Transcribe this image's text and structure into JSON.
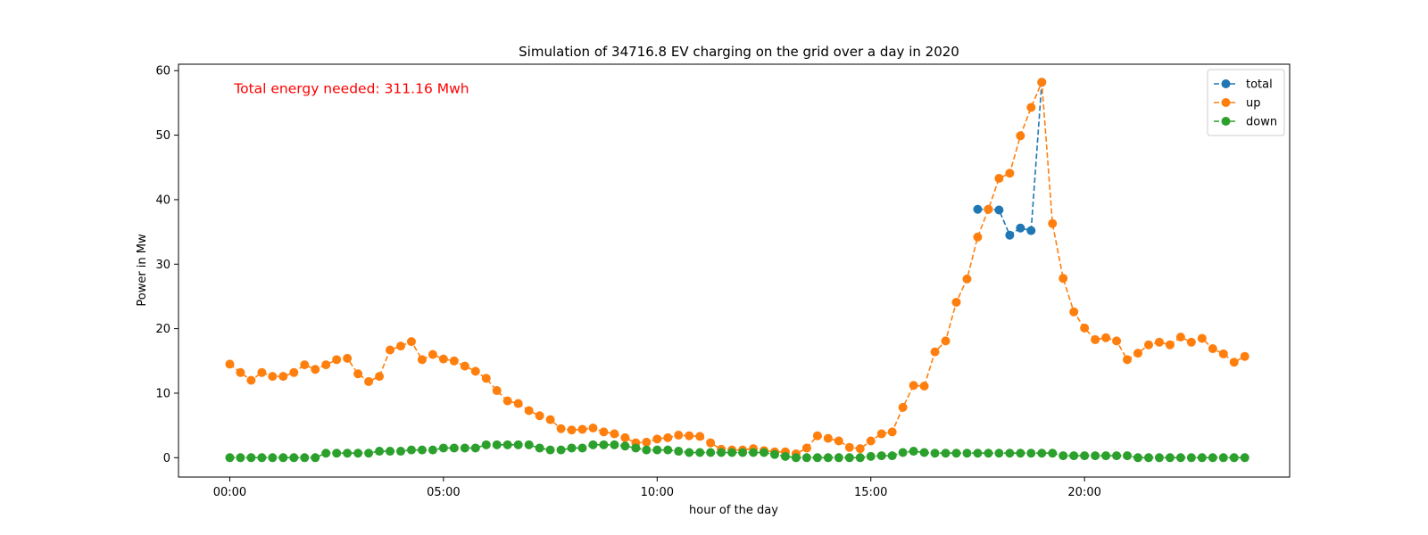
{
  "chart_data": {
    "type": "line",
    "title": "Simulation of 34716.8 EV charging on the grid over a day in 2020",
    "xlabel": "hour of the day",
    "ylabel": "Power in Mw",
    "xlim": [
      -1.2,
      24.8
    ],
    "ylim": [
      -3,
      61
    ],
    "xticks": [
      {
        "value": 0,
        "label": "00:00"
      },
      {
        "value": 5,
        "label": "05:00"
      },
      {
        "value": 10,
        "label": "10:00"
      },
      {
        "value": 15,
        "label": "15:00"
      },
      {
        "value": 20,
        "label": "20:00"
      }
    ],
    "yticks": [
      0,
      10,
      20,
      30,
      40,
      50,
      60
    ],
    "grid": false,
    "legend_position": "top-right",
    "annotation": {
      "text": "Total energy needed: 311.16 Mwh",
      "color": "#ff0000",
      "x": 0.1,
      "y": 56.5
    },
    "series": [
      {
        "name": "total",
        "color": "#1f77b4",
        "x": [
          17.5,
          17.75,
          18.0,
          18.25,
          18.5,
          18.75,
          19.0
        ],
        "y": [
          38.5,
          38.5,
          38.4,
          34.5,
          35.6,
          35.2,
          58.2
        ]
      },
      {
        "name": "up",
        "color": "#ff7f0e",
        "x": [
          0,
          0.25,
          0.5,
          0.75,
          1,
          1.25,
          1.5,
          1.75,
          2,
          2.25,
          2.5,
          2.75,
          3,
          3.25,
          3.5,
          3.75,
          4,
          4.25,
          4.5,
          4.75,
          5,
          5.25,
          5.5,
          5.75,
          6,
          6.25,
          6.5,
          6.75,
          7,
          7.25,
          7.5,
          7.75,
          8,
          8.25,
          8.5,
          8.75,
          9,
          9.25,
          9.5,
          9.75,
          10,
          10.25,
          10.5,
          10.75,
          11,
          11.25,
          11.5,
          11.75,
          12,
          12.25,
          12.5,
          12.75,
          13,
          13.25,
          13.5,
          13.75,
          14,
          14.25,
          14.5,
          14.75,
          15,
          15.25,
          15.5,
          15.75,
          16,
          16.25,
          16.5,
          16.75,
          17,
          17.25,
          17.5,
          17.75,
          18,
          18.25,
          18.5,
          18.75,
          19,
          19.25,
          19.5,
          19.75,
          20,
          20.25,
          20.5,
          20.75,
          21,
          21.25,
          21.5,
          21.75,
          22,
          22.25,
          22.5,
          22.75,
          23,
          23.25,
          23.5,
          23.75
        ],
        "y": [
          14.5,
          13.2,
          12.0,
          13.2,
          12.6,
          12.6,
          13.2,
          14.4,
          13.7,
          14.4,
          15.2,
          15.4,
          13.0,
          11.8,
          12.6,
          16.7,
          17.3,
          18.0,
          15.2,
          16.0,
          15.3,
          15.0,
          14.2,
          13.4,
          12.3,
          10.4,
          8.8,
          8.4,
          7.3,
          6.5,
          5.9,
          4.5,
          4.3,
          4.4,
          4.6,
          4.0,
          3.7,
          3.1,
          2.3,
          2.4,
          2.9,
          3.1,
          3.5,
          3.4,
          3.3,
          2.3,
          1.3,
          1.2,
          1.2,
          1.4,
          1.1,
          0.9,
          0.9,
          0.6,
          1.5,
          3.4,
          3.0,
          2.6,
          1.6,
          1.4,
          2.6,
          3.7,
          4.0,
          7.8,
          11.2,
          11.1,
          16.4,
          18.1,
          24.1,
          27.7,
          34.2,
          38.5,
          43.3,
          44.1,
          49.9,
          54.3,
          58.2,
          36.3,
          27.8,
          22.6,
          20.1,
          18.3,
          18.6,
          18.1,
          15.2,
          16.2,
          17.5,
          17.9,
          17.5,
          18.7,
          17.9,
          18.5,
          16.9,
          16.1,
          14.8,
          15.7
        ]
      },
      {
        "name": "down",
        "color": "#2ca02c",
        "x": [
          0,
          0.25,
          0.5,
          0.75,
          1,
          1.25,
          1.5,
          1.75,
          2,
          2.25,
          2.5,
          2.75,
          3,
          3.25,
          3.5,
          3.75,
          4,
          4.25,
          4.5,
          4.75,
          5,
          5.25,
          5.5,
          5.75,
          6,
          6.25,
          6.5,
          6.75,
          7,
          7.25,
          7.5,
          7.75,
          8,
          8.25,
          8.5,
          8.75,
          9,
          9.25,
          9.5,
          9.75,
          10,
          10.25,
          10.5,
          10.75,
          11,
          11.25,
          11.5,
          11.75,
          12,
          12.25,
          12.5,
          12.75,
          13,
          13.25,
          13.5,
          13.75,
          14,
          14.25,
          14.5,
          14.75,
          15,
          15.25,
          15.5,
          15.75,
          16,
          16.25,
          16.5,
          16.75,
          17,
          17.25,
          17.5,
          17.75,
          18,
          18.25,
          18.5,
          18.75,
          19,
          19.25,
          19.5,
          19.75,
          20,
          20.25,
          20.5,
          20.75,
          21,
          21.25,
          21.5,
          21.75,
          22,
          22.25,
          22.5,
          22.75,
          23,
          23.25,
          23.5,
          23.75
        ],
        "y": [
          0,
          0,
          0,
          0,
          0,
          0,
          0,
          0,
          0,
          0.7,
          0.7,
          0.7,
          0.7,
          0.7,
          1.0,
          1.0,
          1.0,
          1.2,
          1.2,
          1.2,
          1.5,
          1.5,
          1.5,
          1.5,
          2.0,
          2.0,
          2.0,
          2.0,
          2.0,
          1.5,
          1.2,
          1.2,
          1.5,
          1.5,
          2.0,
          2.0,
          2.0,
          1.8,
          1.5,
          1.2,
          1.2,
          1.2,
          1.0,
          0.8,
          0.8,
          0.8,
          0.8,
          0.8,
          0.8,
          0.8,
          0.8,
          0.5,
          0.2,
          0,
          0,
          0,
          0,
          0,
          0,
          0,
          0.2,
          0.3,
          0.3,
          0.8,
          1.0,
          0.8,
          0.7,
          0.7,
          0.7,
          0.7,
          0.7,
          0.7,
          0.7,
          0.7,
          0.7,
          0.7,
          0.7,
          0.7,
          0.3,
          0.3,
          0.3,
          0.3,
          0.3,
          0.3,
          0.3,
          0,
          0,
          0,
          0,
          0,
          0,
          0,
          0,
          0,
          0,
          0
        ]
      }
    ]
  }
}
